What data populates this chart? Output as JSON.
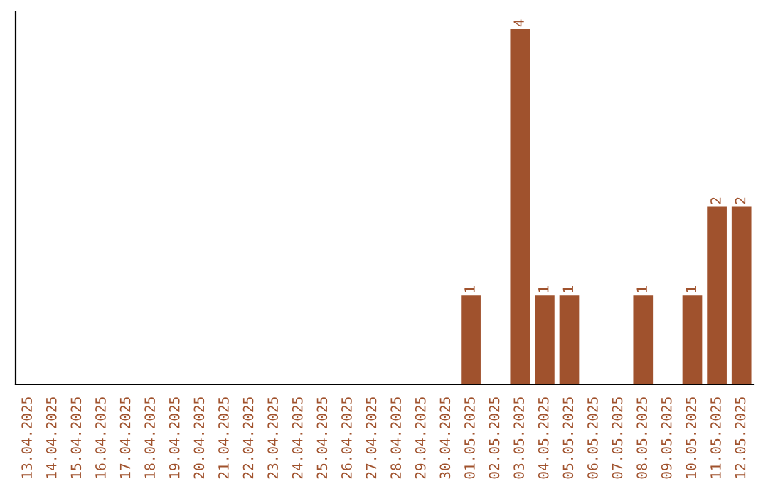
{
  "chart_data": {
    "type": "bar",
    "categories": [
      "13.04.2025",
      "14.04.2025",
      "15.04.2025",
      "16.04.2025",
      "17.04.2025",
      "18.04.2025",
      "19.04.2025",
      "20.04.2025",
      "21.04.2025",
      "22.04.2025",
      "23.04.2025",
      "24.04.2025",
      "25.04.2025",
      "26.04.2025",
      "27.04.2025",
      "28.04.2025",
      "29.04.2025",
      "30.04.2025",
      "01.05.2025",
      "02.05.2025",
      "03.05.2025",
      "04.05.2025",
      "05.05.2025",
      "06.05.2025",
      "07.05.2025",
      "08.05.2025",
      "09.05.2025",
      "10.05.2025",
      "11.05.2025",
      "12.05.2025"
    ],
    "values": [
      null,
      null,
      null,
      null,
      null,
      null,
      null,
      null,
      null,
      null,
      null,
      null,
      null,
      null,
      null,
      null,
      null,
      null,
      1,
      null,
      4,
      1,
      1,
      null,
      null,
      1,
      null,
      1,
      2,
      2
    ],
    "data_labels": true,
    "color": "#a0522d",
    "tick_labels": "x",
    "grid": false,
    "legend": false
  }
}
